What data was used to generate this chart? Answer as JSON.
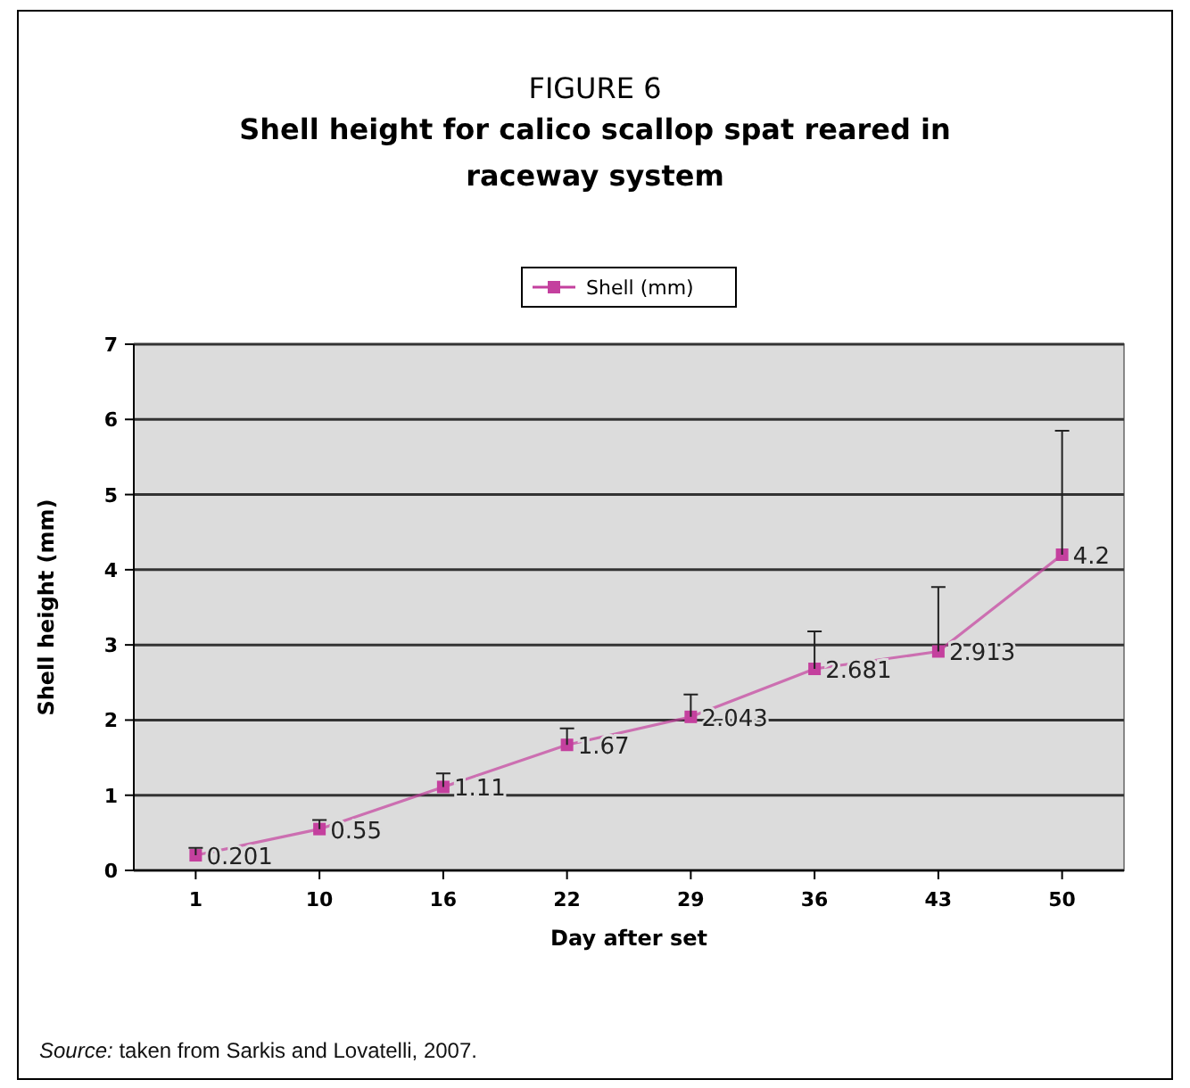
{
  "chart_data": {
    "type": "line",
    "title": "FIGURE 6",
    "subtitle": "Shell height for calico scallop spat reared in raceway system",
    "xlabel": "Day after set",
    "ylabel": "Shell height (mm)",
    "categories": [
      "1",
      "10",
      "16",
      "22",
      "29",
      "36",
      "43",
      "50"
    ],
    "series": [
      {
        "name": "Shell (mm)",
        "color": "#c4409e",
        "values": [
          0.201,
          0.55,
          1.11,
          1.67,
          2.043,
          2.681,
          2.913,
          4.2
        ],
        "errors": [
          [
            0.201,
            0.3
          ],
          [
            0.55,
            0.67
          ],
          [
            1.11,
            1.29
          ],
          [
            1.67,
            1.89
          ],
          [
            2.043,
            2.34
          ],
          [
            2.681,
            3.18
          ],
          [
            2.913,
            3.77
          ],
          [
            4.2,
            5.85
          ]
        ]
      }
    ],
    "ylim": [
      0,
      7
    ],
    "yticks": [
      0,
      1,
      2,
      3,
      4,
      5,
      6,
      7
    ],
    "grid": "y",
    "legend": "top",
    "marker": "square",
    "line_style": "solid",
    "data_labels": true,
    "annotations": [
      "Source: taken from Sarkis and Lovatelli, 2007."
    ]
  }
}
